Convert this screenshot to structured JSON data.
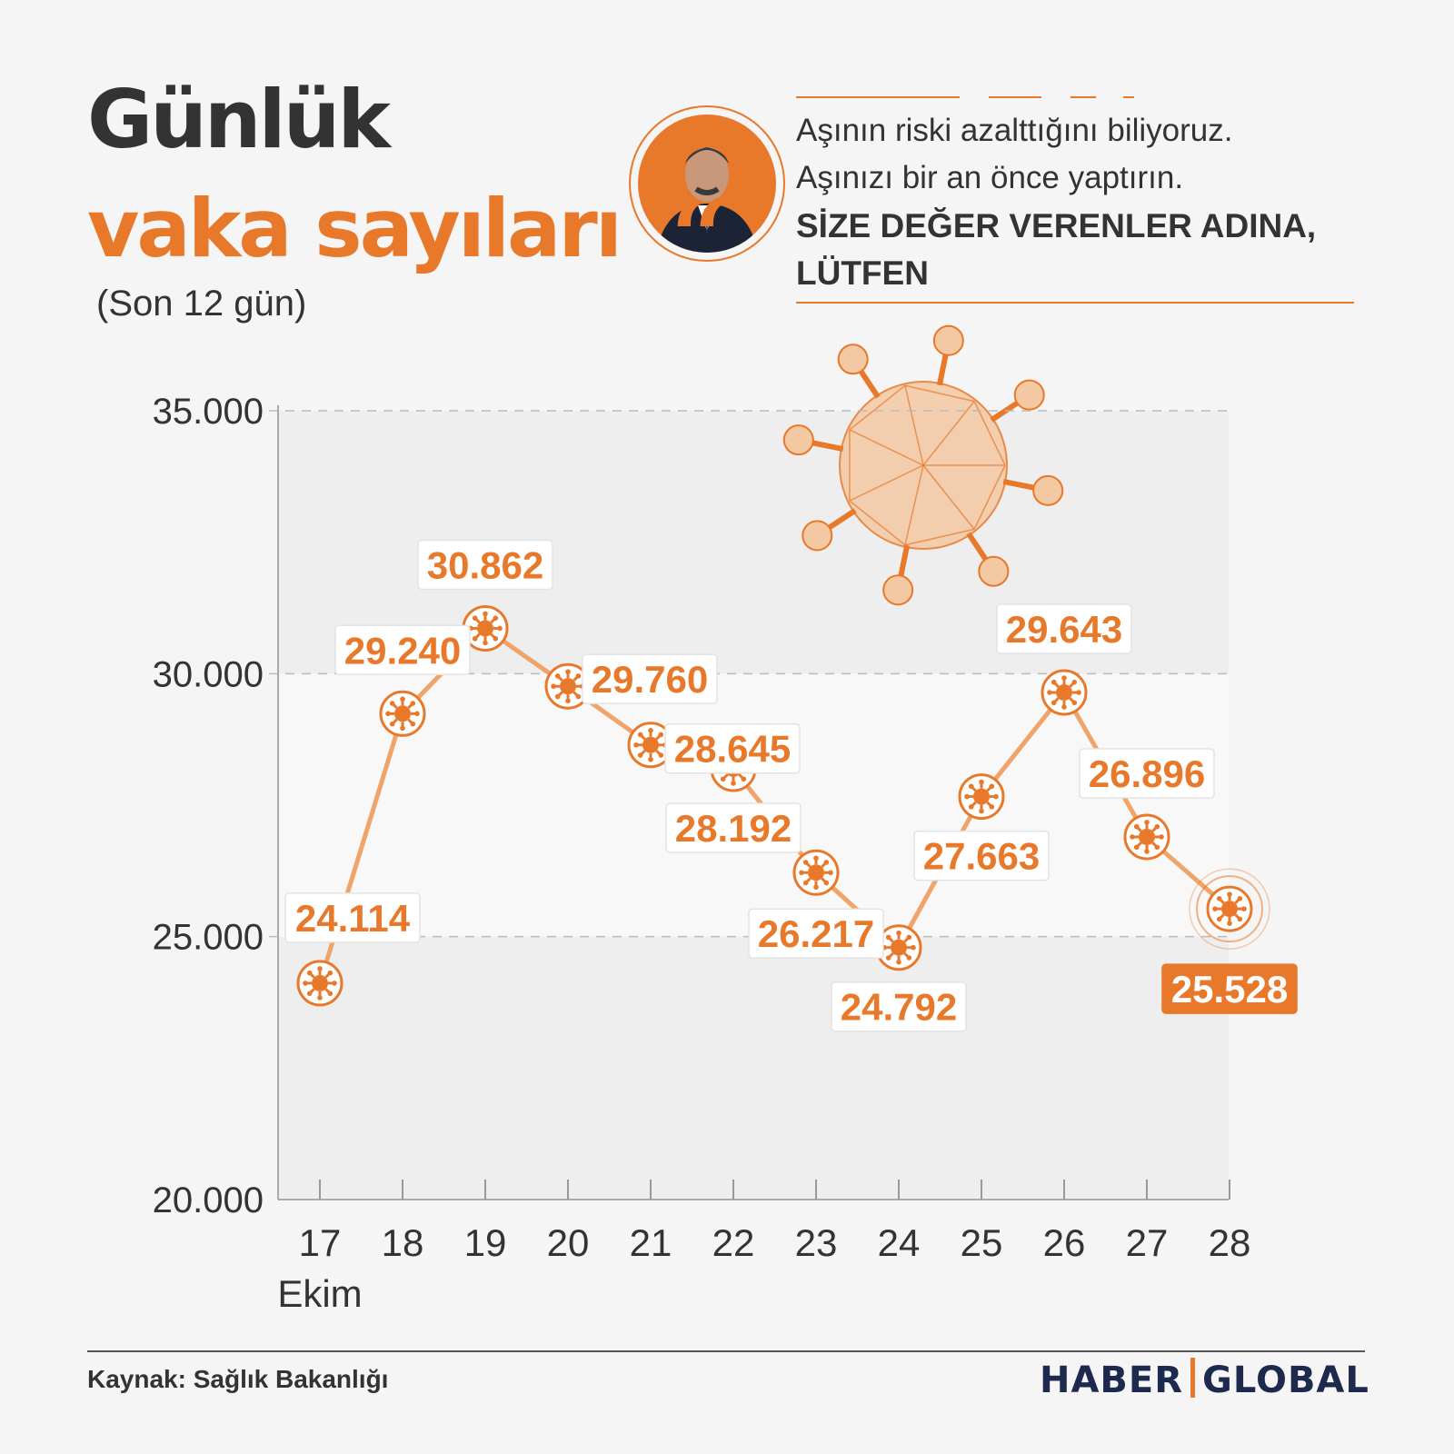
{
  "header": {
    "title_line1": "Günlük",
    "title_line2": "vaka sayıları",
    "subtitle": "(Son 12 gün)"
  },
  "quote": {
    "line1": "Aşının riski azalttığını biliyoruz.",
    "line2": "Aşınızı bir an önce yaptırın.",
    "line3": "SİZE DEĞER VERENLER ADINA,",
    "line4": "LÜTFEN"
  },
  "footer": {
    "source": "Kaynak: Sağlık Bakanlığı",
    "brand_left": "HABER",
    "brand_right": "GLOBAL"
  },
  "colors": {
    "accent": "#e8782a",
    "text": "#333333",
    "brand": "#1d2a4d",
    "background": "#f5f5f5"
  },
  "chart_data": {
    "type": "line",
    "title": "Günlük vaka sayıları",
    "subtitle": "(Son 12 gün)",
    "categories": [
      "17",
      "18",
      "19",
      "20",
      "21",
      "22",
      "23",
      "24",
      "25",
      "26",
      "27",
      "28"
    ],
    "x_month_label": "Ekim",
    "values": [
      24114,
      29240,
      30862,
      29760,
      28645,
      28192,
      26217,
      24792,
      27663,
      29643,
      26896,
      25528
    ],
    "labels": [
      "24.114",
      "29.240",
      "30.862",
      "29.760",
      "28.645",
      "28.192",
      "26.217",
      "24.792",
      "27.663",
      "29.643",
      "26.896",
      "25.528"
    ],
    "yticks": [
      20000,
      25000,
      30000,
      35000
    ],
    "ytick_labels": [
      "20.000",
      "25.000",
      "30.000",
      "35.000"
    ],
    "ylim": [
      20000,
      35000
    ],
    "grid": true,
    "highlight_last": true,
    "point_icon": "virus-icon"
  }
}
